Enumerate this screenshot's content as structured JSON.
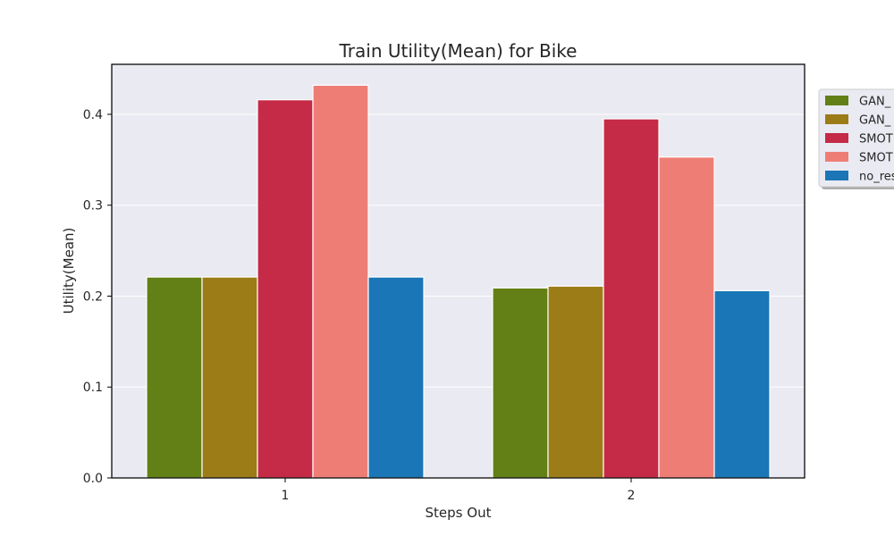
{
  "chart_data": {
    "type": "bar",
    "title": "Train Utility(Mean) for Bike",
    "xlabel": "Steps Out",
    "ylabel": "Utility(Mean)",
    "categories": [
      "1",
      "2"
    ],
    "ylim": [
      0,
      0.455
    ],
    "yticks": [
      0.0,
      0.1,
      0.2,
      0.3,
      0.4
    ],
    "ytick_labels": [
      "0.0",
      "0.1",
      "0.2",
      "0.3",
      "0.4"
    ],
    "grid": true,
    "legend_position": "top-right",
    "legend_entries": [
      "GAN_",
      "GAN_",
      "SMOT",
      "SMOT",
      "no_res"
    ],
    "colors": {
      "plot_background": "#eaeaf2",
      "grid": "#ffffff",
      "axes_edge": "#000000",
      "text": "#262626",
      "legend_edge": "#cccccc"
    },
    "series": [
      {
        "color": "#628016",
        "values": [
          0.221,
          0.209
        ]
      },
      {
        "color": "#9c7c17",
        "values": [
          0.221,
          0.211
        ]
      },
      {
        "color": "#c52a47",
        "values": [
          0.416,
          0.395
        ]
      },
      {
        "color": "#ee7e75",
        "values": [
          0.432,
          0.353
        ]
      },
      {
        "color": "#1a76b6",
        "values": [
          0.221,
          0.206
        ]
      }
    ]
  }
}
